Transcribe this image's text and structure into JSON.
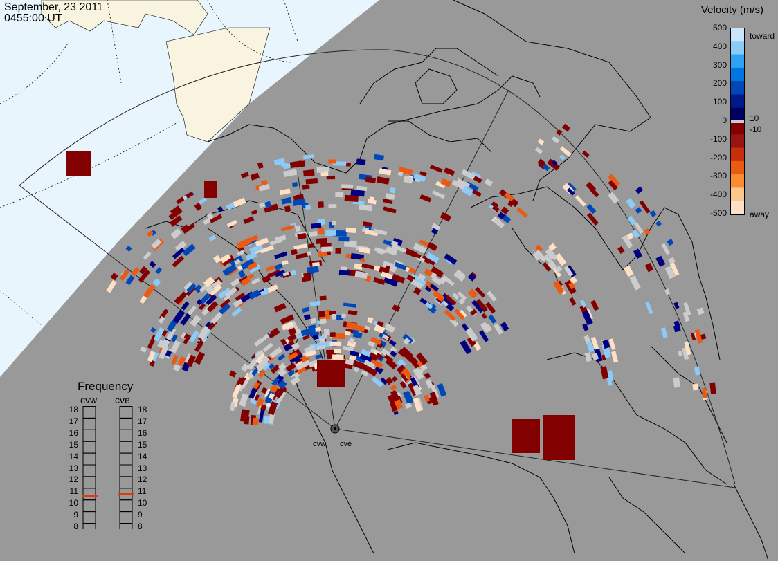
{
  "header": {
    "date": "September, 23 2011",
    "time": "0455:00 UT"
  },
  "colorbar": {
    "title": "Velocity (m/s)",
    "ticks_left": [
      "500",
      "400",
      "300",
      "200",
      "100",
      "0",
      "-100",
      "-200",
      "-300",
      "-400",
      "-500"
    ],
    "label_toward": "toward",
    "label_away": "away",
    "label_pos": "10",
    "label_neg": "-10",
    "colors": [
      "#fde0c5",
      "#fcc78e",
      "#f98c2e",
      "#ea5a12",
      "#c72f0a",
      "#9b1411",
      "#820000",
      "#000060",
      "#001a8c",
      "#0047b8",
      "#0077e0",
      "#2fa2f5",
      "#8ccaf7",
      "#cbe6fb"
    ]
  },
  "frequency": {
    "title": "Frequency",
    "radars": [
      "cvw",
      "cve"
    ],
    "scale": [
      "18",
      "17",
      "16",
      "15",
      "14",
      "13",
      "12",
      "11",
      "10",
      "9",
      "8"
    ],
    "current": {
      "cvw": 10.8,
      "cve": 11.0
    },
    "marker_color": "#e03a10"
  },
  "radar_sites": [
    "cvw",
    "cve"
  ],
  "colors": {
    "ocean": "#999999",
    "daylight_shade": "#e8f5fd",
    "land_day": "#f8f4df",
    "coastline": "#000000",
    "ground_scatter": "#cccccc"
  }
}
